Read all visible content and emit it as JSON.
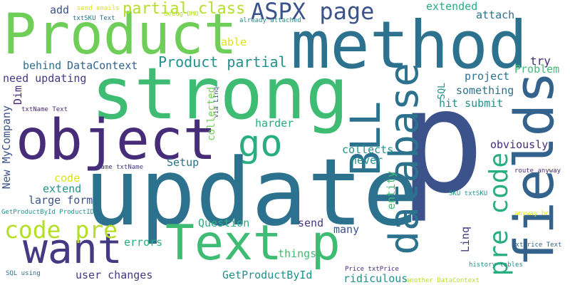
{
  "palette": {
    "background": "#ffffff",
    "darkPurple": "#472c7a",
    "purple": "#443983",
    "slateBlue": "#3b528b",
    "blue": "#33638d",
    "teal": "#2c728e",
    "tealGreen": "#21918c",
    "green": "#28ae80",
    "brightGreen": "#3fbc73",
    "lime": "#6ece58",
    "yellowGreen": "#b5de2b",
    "yellow": "#dde318"
  },
  "words": [
    {
      "id": "p",
      "text": "p"
    },
    {
      "id": "update",
      "text": "update"
    },
    {
      "id": "strong",
      "text": "strong"
    },
    {
      "id": "method",
      "text": "method"
    },
    {
      "id": "product",
      "text": "Product"
    },
    {
      "id": "object",
      "text": "object"
    },
    {
      "id": "fields",
      "text": "fields"
    },
    {
      "id": "text-p",
      "text": "Text p"
    },
    {
      "id": "want",
      "text": "want"
    },
    {
      "id": "database",
      "text": "database"
    },
    {
      "id": "bll",
      "text": "BLL"
    },
    {
      "id": "aspx-page",
      "text": "ASPX page"
    },
    {
      "id": "code-pre",
      "text": "code pre"
    },
    {
      "id": "pre-code",
      "text": "pre code"
    },
    {
      "id": "go",
      "text": "go"
    },
    {
      "id": "partial-class",
      "text": "partial class"
    },
    {
      "id": "product-partial",
      "text": "Product partial"
    },
    {
      "id": "datacontext",
      "text": "DataContext"
    },
    {
      "id": "behind",
      "text": "behind"
    },
    {
      "id": "need-updating",
      "text": "need updating"
    },
    {
      "id": "add",
      "text": "add"
    },
    {
      "id": "txtsku-text",
      "text": "txtSKU Text"
    },
    {
      "id": "send-emails",
      "text": "send emails"
    },
    {
      "id": "debug-dmo",
      "text": "debug DMO"
    },
    {
      "id": "already-attached",
      "text": "already attached"
    },
    {
      "id": "extended",
      "text": "extended"
    },
    {
      "id": "attach",
      "text": "attach"
    },
    {
      "id": "try",
      "text": "try"
    },
    {
      "id": "able",
      "text": "able"
    },
    {
      "id": "problem",
      "text": "Problem"
    },
    {
      "id": "project",
      "text": "project"
    },
    {
      "id": "something",
      "text": "something"
    },
    {
      "id": "hit-submit",
      "text": "hit submit"
    },
    {
      "id": "sql",
      "text": "SQL"
    },
    {
      "id": "obviously",
      "text": "obviously"
    },
    {
      "id": "collected",
      "text": "collected"
    },
    {
      "id": "via-linq",
      "text": "via Linq"
    },
    {
      "id": "harder",
      "text": "harder"
    },
    {
      "id": "collects",
      "text": "collects"
    },
    {
      "id": "never",
      "text": "never"
    },
    {
      "id": "setup",
      "text": "Setup"
    },
    {
      "id": "entity",
      "text": "entity"
    },
    {
      "id": "dim",
      "text": "Dim"
    },
    {
      "id": "txtname-text",
      "text": "txtName Text"
    },
    {
      "id": "new-mycompany",
      "text": "New MyCompany"
    },
    {
      "id": "name-txtname",
      "text": "Name txtName"
    },
    {
      "id": "code",
      "text": "code"
    },
    {
      "id": "extend",
      "text": "extend"
    },
    {
      "id": "large-form",
      "text": "large form"
    },
    {
      "id": "getproductbyid-productid",
      "text": "GetProductById ProductID"
    },
    {
      "id": "question",
      "text": "Question"
    },
    {
      "id": "send",
      "text": "send"
    },
    {
      "id": "many",
      "text": "many"
    },
    {
      "id": "errors",
      "text": "errors"
    },
    {
      "id": "things",
      "text": "things"
    },
    {
      "id": "linq",
      "text": "Linq"
    },
    {
      "id": "route-anyway",
      "text": "route anyway"
    },
    {
      "id": "sku-txtsku",
      "text": "SKU txtSKU"
    },
    {
      "id": "anyway-bc",
      "text": "anyway bc"
    },
    {
      "id": "txtprice-text",
      "text": "txtPrice Text"
    },
    {
      "id": "user-changes",
      "text": "user changes"
    },
    {
      "id": "getproductbyid",
      "text": "GetProductById"
    },
    {
      "id": "ridiculous",
      "text": "ridiculous"
    },
    {
      "id": "price-txtprice",
      "text": "Price txtPrice"
    },
    {
      "id": "history-tables",
      "text": "history tables"
    },
    {
      "id": "another-datacontext",
      "text": "another DataContext"
    },
    {
      "id": "sql-using",
      "text": "SQL using"
    }
  ]
}
